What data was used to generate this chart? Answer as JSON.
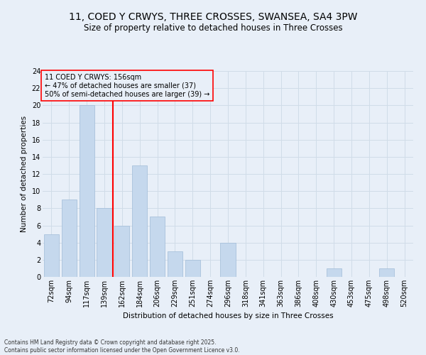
{
  "title1": "11, COED Y CRWYS, THREE CROSSES, SWANSEA, SA4 3PW",
  "title2": "Size of property relative to detached houses in Three Crosses",
  "xlabel": "Distribution of detached houses by size in Three Crosses",
  "ylabel": "Number of detached properties",
  "bins": [
    "72sqm",
    "94sqm",
    "117sqm",
    "139sqm",
    "162sqm",
    "184sqm",
    "206sqm",
    "229sqm",
    "251sqm",
    "274sqm",
    "296sqm",
    "318sqm",
    "341sqm",
    "363sqm",
    "386sqm",
    "408sqm",
    "430sqm",
    "453sqm",
    "475sqm",
    "498sqm",
    "520sqm"
  ],
  "counts": [
    5,
    9,
    20,
    8,
    6,
    13,
    7,
    3,
    2,
    0,
    4,
    0,
    0,
    0,
    0,
    0,
    1,
    0,
    0,
    1,
    0
  ],
  "bar_color": "#c5d8ed",
  "bar_edge_color": "#a0bcd8",
  "grid_color": "#d0dce8",
  "bg_color": "#e8eff8",
  "vline_color": "red",
  "vline_index": 4,
  "annotation_text": "11 COED Y CRWYS: 156sqm\n← 47% of detached houses are smaller (37)\n50% of semi-detached houses are larger (39) →",
  "footer": "Contains HM Land Registry data © Crown copyright and database right 2025.\nContains public sector information licensed under the Open Government Licence v3.0.",
  "ylim": [
    0,
    24
  ],
  "yticks": [
    0,
    2,
    4,
    6,
    8,
    10,
    12,
    14,
    16,
    18,
    20,
    22,
    24
  ],
  "title1_fontsize": 10,
  "title2_fontsize": 8.5,
  "axis_label_fontsize": 7.5,
  "tick_fontsize": 7,
  "annotation_fontsize": 7,
  "footer_fontsize": 5.5
}
